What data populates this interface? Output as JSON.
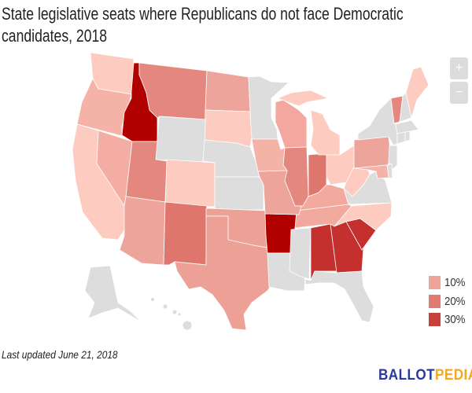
{
  "title": "State legislative seats where Republicans do not face Democratic candidates, 2018",
  "zoom_controls": {
    "zoom_in": "+",
    "zoom_out": "−"
  },
  "legend": [
    {
      "label": "10%",
      "color": "#eda49a"
    },
    {
      "label": "20%",
      "color": "#e07a72"
    },
    {
      "label": "30%",
      "color": "#c8403c"
    }
  ],
  "footer": {
    "last_updated": "Last updated June 21, 2018"
  },
  "logo": {
    "part1": "BALLOT",
    "part2": "PEDIA",
    "color1": "#2a3a9c",
    "color2": "#f5a623"
  },
  "map": {
    "no_data_color": "#dddddd",
    "state_fills": {
      "WA": "#fdcbbf",
      "OR": "#f5b2a7",
      "CA": "#fdcbbf",
      "ID": "#b00000",
      "NV": "#f3ada2",
      "MT": "#e4877e",
      "WY": "#dddddd",
      "UT": "#e4877e",
      "AZ": "#eda49a",
      "CO": "#fdcbbf",
      "NM": "#df766d",
      "ND": "#eda49a",
      "SD": "#fdcbbf",
      "NE": "#dddddd",
      "KS": "#dddddd",
      "OK": "#eda096",
      "TX": "#eda096",
      "MN": "#dddddd",
      "IA": "#f5b2a7",
      "MO": "#eda49a",
      "AR": "#b00000",
      "LA": "#dddddd",
      "WI": "#f2a89e",
      "IL": "#e4877e",
      "MS": "#dddddd",
      "MI": "#fdcbbf",
      "IN": "#df766d",
      "KY": "#f2aa9f",
      "TN": "#f2aa9f",
      "AL": "#c4302e",
      "OH": "#fdcbbf",
      "GA": "#c4302e",
      "FL": "#dddddd",
      "SC": "#c4302e",
      "NC": "#fdcbbf",
      "VA": "#dddddd",
      "WV": "#fdcbbf",
      "PA": "#eda49a",
      "NY": "#dddddd",
      "VT": "#e4877e",
      "NH": "#dddddd",
      "ME": "#fdcbbf",
      "MA": "#dddddd",
      "CT": "#dddddd",
      "RI": "#dddddd",
      "NJ": "#dddddd",
      "DE": "#dddddd",
      "MD": "#f5b2a7",
      "AK": "#dddddd",
      "HI": "#dddddd"
    }
  }
}
